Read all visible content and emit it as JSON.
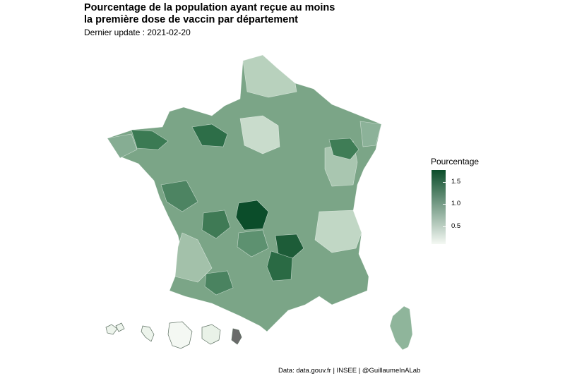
{
  "header": {
    "title_line1": "Pourcentage de la population ayant reçue au moins",
    "title_line2": "la première dose de vaccin par département",
    "subtitle": "Dernier update : 2021-02-20"
  },
  "caption": "Data: data.gouv.fr | INSEE | @GuillaumeInALab",
  "legend": {
    "title": "Pourcentage",
    "ticks": [
      {
        "label": "1.5",
        "value": 1.5
      },
      {
        "label": "1.0",
        "value": 1.0
      },
      {
        "label": "0.5",
        "value": 0.5
      }
    ],
    "min": 0.05,
    "max": 1.85,
    "color_low": "#f4f8f3",
    "color_high": "#0b4d2a"
  },
  "map": {
    "regions": "metropolitan France departments, Corsica, overseas departments (Guadeloupe, Martinique, Guyane, La Réunion, Mayotte)",
    "highlighted": [
      "Haute-Vienne (darkest)",
      "Lozère / Haute-Loire",
      "Mayenne",
      "Côtes-d'Armor",
      "Haute-Saône"
    ],
    "overseas_note": "Mayotte shown in grey (no data)"
  }
}
